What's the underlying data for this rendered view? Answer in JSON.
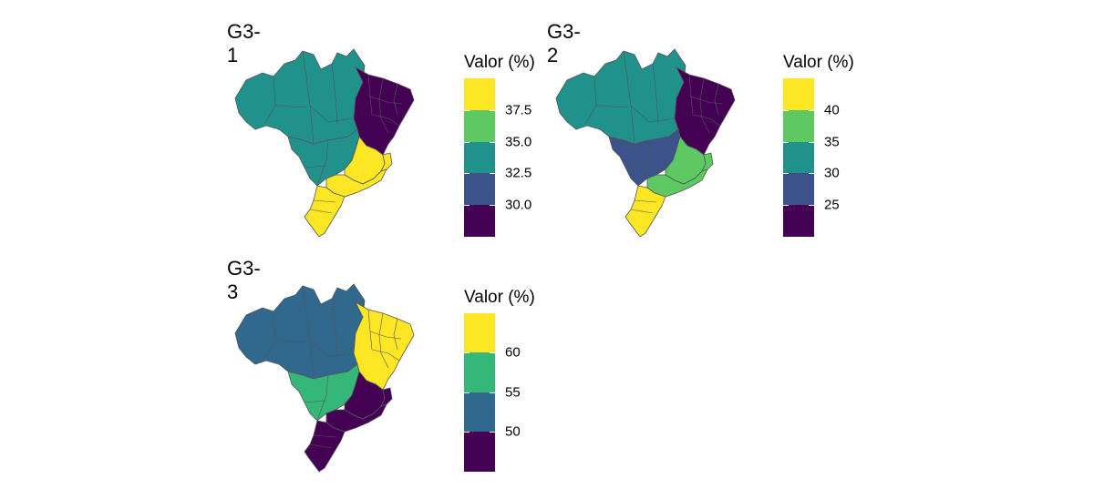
{
  "colors": {
    "c1": "#440154",
    "c2": "#3b528b",
    "c3": "#21918c",
    "c4": "#5ec962",
    "c5": "#fde725",
    "g3_3_dark": "#440154",
    "g3_3_blue": "#31688e",
    "g3_3_green": "#35b779",
    "g3_3_yellow": "#fde725"
  },
  "panels": [
    {
      "title": "G3-1",
      "legend_title": "Valor (%)",
      "legend_ticks": [
        "37.5",
        "35.0",
        "32.5",
        "30.0"
      ],
      "legend_colors": [
        "#fde725",
        "#5ec962",
        "#21918c",
        "#3b528b",
        "#440154"
      ],
      "region_colors": {
        "north": "#21918c",
        "northeast": "#440154",
        "centerwest": "#21918c",
        "southeast": "#fde725",
        "south": "#fde725",
        "es": "#fde725",
        "minas": "#fde725"
      }
    },
    {
      "title": "G3-2",
      "legend_title": "Valor (%)",
      "legend_ticks": [
        "40",
        "35",
        "30",
        "25"
      ],
      "legend_colors": [
        "#fde725",
        "#5ec962",
        "#21918c",
        "#3b528b",
        "#440154"
      ],
      "region_colors": {
        "north": "#21918c",
        "northeast": "#440154",
        "centerwest": "#3b528b",
        "southeast": "#5ec962",
        "south": "#fde725",
        "es": "#5ec962",
        "minas": "#5ec962"
      }
    },
    {
      "title": "G3-3",
      "legend_title": "Valor (%)",
      "legend_ticks": [
        "60",
        "55",
        "50"
      ],
      "legend_colors": [
        "#fde725",
        "#35b779",
        "#31688e",
        "#440154"
      ],
      "region_colors": {
        "north": "#31688e",
        "northeast": "#fde725",
        "centerwest": "#35b779",
        "southeast": "#440154",
        "south": "#440154",
        "es": "#440154",
        "minas": "#440154"
      }
    }
  ]
}
